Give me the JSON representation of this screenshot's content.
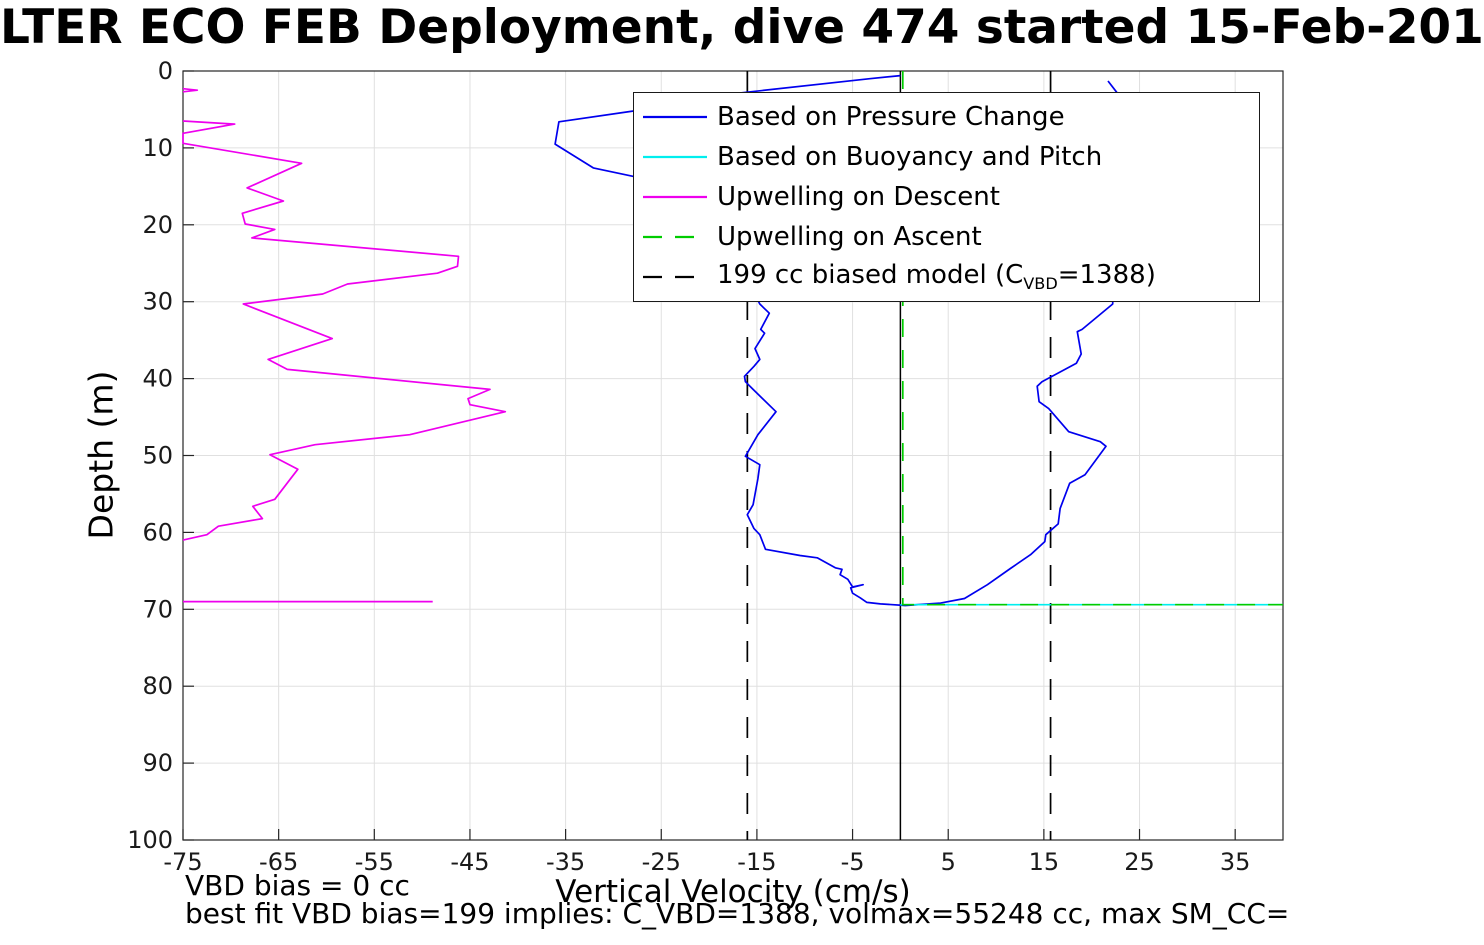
{
  "figure": {
    "title": "LTER ECO FEB Deployment, dive 474 started 15-Feb-201",
    "annotations": {
      "vbd_bias": "VBD bias = 0 cc",
      "best_fit": "best fit VBD bias=199 implies: C_VBD=1388, volmax=55248 cc, max SM_CC="
    }
  },
  "colors": {
    "blue": "#0000EE",
    "cyan": "#00EEEE",
    "magenta": "#EE00EE",
    "green": "#00CC00",
    "black": "#000000",
    "grid": "#E0E0E0",
    "box": "#262626"
  },
  "chart_data": {
    "type": "line",
    "title": "LTER ECO FEB Deployment, dive 474 started 15-Feb-201",
    "xlabel": "Vertical Velocity (cm/s)",
    "ylabel": "Depth (m)",
    "xlim": [
      -75,
      40
    ],
    "ylim": [
      0,
      100
    ],
    "y_axis_reversed_depth": true,
    "grid": true,
    "x_ticks": [
      -75,
      -65,
      -55,
      -45,
      -35,
      -25,
      -15,
      -5,
      5,
      15,
      25,
      35
    ],
    "y_ticks": [
      0,
      10,
      20,
      30,
      40,
      50,
      60,
      70,
      80,
      90,
      100
    ],
    "legend_position": "top-center",
    "legend": [
      {
        "label_pre": "Based on Pressure Change",
        "label_sub": "",
        "label_post": "",
        "color": "#0000EE",
        "style": "solid"
      },
      {
        "label_pre": "Based on Buoyancy and Pitch",
        "label_sub": "",
        "label_post": "",
        "color": "#00EEEE",
        "style": "solid"
      },
      {
        "label_pre": "Upwelling on Descent",
        "label_sub": "",
        "label_post": "",
        "color": "#EE00EE",
        "style": "solid"
      },
      {
        "label_pre": "Upwelling on Ascent",
        "label_sub": "",
        "label_post": "",
        "color": "#00CC00",
        "style": "dashed"
      },
      {
        "label_pre": "199 cc biased model (C",
        "label_sub": "VBD",
        "label_post": "=1388)",
        "color": "#000000",
        "style": "dashed"
      }
    ],
    "reference_lines": [
      {
        "name": "zero-velocity-line",
        "orientation": "vertical",
        "x": 0,
        "color": "#000000",
        "style": "solid"
      },
      {
        "name": "descent-model-line",
        "orientation": "vertical",
        "x": -16,
        "color": "#000000",
        "style": "dashed"
      },
      {
        "name": "ascent-model-line",
        "orientation": "vertical",
        "x": 15.7,
        "color": "#000000",
        "style": "dashed"
      }
    ],
    "series": [
      {
        "name": "Based on Pressure Change",
        "color": "#0000EE",
        "style": "solid",
        "units": {
          "x": "cm/s",
          "y": "m depth"
        },
        "segments": [
          [
            [
              0,
              0.6
            ],
            [
              -3.2,
              1.0
            ],
            [
              -17.1,
              2.9
            ],
            [
              -27.9,
              5.2
            ],
            [
              -35.7,
              6.6
            ],
            [
              -36.1,
              9.5
            ],
            [
              -32.1,
              12.6
            ],
            [
              -27.9,
              13.7
            ],
            [
              -21.0,
              20.0
            ],
            [
              -16.5,
              26.0
            ],
            [
              -14.7,
              30.3
            ],
            [
              -13.7,
              31.5
            ],
            [
              -14.6,
              33.6
            ],
            [
              -14.2,
              34.1
            ],
            [
              -15.2,
              36.1
            ],
            [
              -14.7,
              37.5
            ],
            [
              -15.3,
              38.4
            ],
            [
              -16.3,
              39.7
            ],
            [
              -16.2,
              40.4
            ],
            [
              -15.4,
              41.4
            ],
            [
              -13.0,
              44.3
            ],
            [
              -14.9,
              47.3
            ],
            [
              -16.2,
              50.1
            ],
            [
              -14.7,
              51.2
            ],
            [
              -14.9,
              53.0
            ],
            [
              -15.4,
              56.4
            ],
            [
              -16.0,
              57.7
            ],
            [
              -15.3,
              59.5
            ],
            [
              -14.7,
              60.3
            ],
            [
              -14.1,
              62.2
            ],
            [
              -10.5,
              63.0
            ],
            [
              -8.7,
              63.3
            ],
            [
              -6.8,
              64.6
            ],
            [
              -6.1,
              64.8
            ],
            [
              -6.3,
              65.5
            ],
            [
              -5.5,
              66.1
            ],
            [
              -5.0,
              67.1
            ],
            [
              -3.9,
              66.8
            ],
            [
              -5.2,
              67.2
            ],
            [
              -5.0,
              67.9
            ],
            [
              -4.2,
              68.5
            ],
            [
              -3.5,
              69.1
            ],
            [
              -2.1,
              69.3
            ],
            [
              0.5,
              69.5
            ],
            [
              4.2,
              69.2
            ],
            [
              6.7,
              68.6
            ],
            [
              9.1,
              66.8
            ],
            [
              11.5,
              64.7
            ],
            [
              13.6,
              62.9
            ],
            [
              15.1,
              61.2
            ],
            [
              15.2,
              60.3
            ],
            [
              16.5,
              58.9
            ],
            [
              16.7,
              56.9
            ],
            [
              17.7,
              53.6
            ],
            [
              19.3,
              52.5
            ],
            [
              21.5,
              48.8
            ],
            [
              20.9,
              48.2
            ],
            [
              17.6,
              46.9
            ],
            [
              15.5,
              43.9
            ],
            [
              14.5,
              43.0
            ],
            [
              14.3,
              41.0
            ],
            [
              14.8,
              40.4
            ],
            [
              18.4,
              38.0
            ],
            [
              18.9,
              36.8
            ],
            [
              18.5,
              33.9
            ],
            [
              19.0,
              33.6
            ],
            [
              22.2,
              30.3
            ],
            [
              22.7,
              2.9
            ],
            [
              21.7,
              1.3
            ]
          ]
        ]
      },
      {
        "name": "Based on Buoyancy and Pitch",
        "color": "#00EEEE",
        "style": "solid",
        "units": {
          "x": "cm/s",
          "y": "m depth"
        },
        "segments": [
          [
            [
              0,
              69.4
            ],
            [
              40,
              69.4
            ]
          ]
        ]
      },
      {
        "name": "Upwelling on Descent",
        "color": "#EE00EE",
        "style": "solid",
        "units": {
          "x": "cm/s",
          "y": "m depth"
        },
        "segments": [
          [
            [
              -75,
              2.3
            ],
            [
              -73.5,
              2.5
            ],
            [
              -75,
              2.7
            ]
          ],
          [
            [
              -75,
              6.5
            ],
            [
              -69.6,
              6.9
            ],
            [
              -75,
              8.1
            ],
            [
              -75,
              9.4
            ],
            [
              -62.6,
              12.0
            ],
            [
              -68.3,
              15.2
            ],
            [
              -64.5,
              16.9
            ],
            [
              -68.8,
              18.5
            ],
            [
              -68.5,
              19.9
            ],
            [
              -65.4,
              20.6
            ],
            [
              -67.8,
              21.7
            ],
            [
              -46.2,
              24.1
            ],
            [
              -46.3,
              25.4
            ],
            [
              -48.4,
              26.3
            ],
            [
              -57.8,
              27.7
            ],
            [
              -60.4,
              29.0
            ],
            [
              -68.7,
              30.3
            ],
            [
              -59.4,
              34.8
            ],
            [
              -66.1,
              37.5
            ],
            [
              -64.1,
              38.8
            ],
            [
              -42.9,
              41.4
            ],
            [
              -45.2,
              42.6
            ],
            [
              -45.0,
              43.4
            ],
            [
              -41.3,
              44.3
            ],
            [
              -51.3,
              47.3
            ],
            [
              -61.2,
              48.6
            ],
            [
              -65.9,
              49.9
            ],
            [
              -63.0,
              51.8
            ],
            [
              -63.8,
              53.1
            ],
            [
              -65.4,
              55.7
            ],
            [
              -67.7,
              56.6
            ],
            [
              -66.7,
              58.2
            ],
            [
              -71.3,
              59.2
            ],
            [
              -72.5,
              60.3
            ],
            [
              -75,
              61.0
            ]
          ],
          [
            [
              -75,
              69.0
            ],
            [
              -48.9,
              69.0
            ]
          ]
        ]
      },
      {
        "name": "Upwelling on Ascent",
        "color": "#00CC00",
        "style": "dashed",
        "units": {
          "x": "cm/s",
          "y": "m depth"
        },
        "segments": [
          [
            [
              0.25,
              0
            ],
            [
              0.25,
              69.4
            ],
            [
              40,
              69.4
            ]
          ]
        ]
      }
    ]
  }
}
